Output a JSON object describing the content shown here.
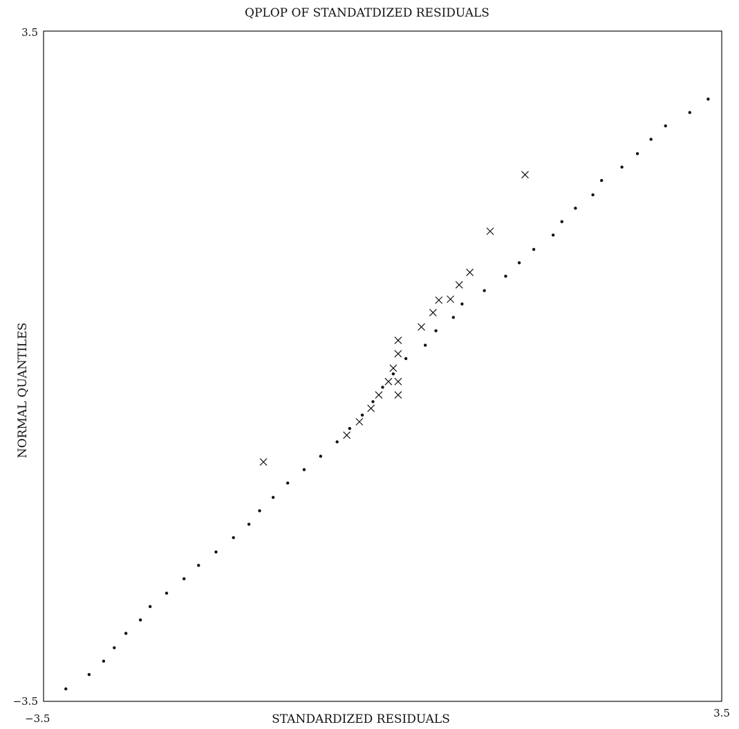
{
  "chart_data": {
    "type": "scatter",
    "title": "QPLOP OF STANDATDIZED RESIDUALS",
    "xlabel": "STANDARDIZED RESIDUALS",
    "ylabel": "NORMAL QUANTILES",
    "xlim": [
      -3.5,
      3.5
    ],
    "ylim": [
      -3.5,
      3.5
    ],
    "x_tick_labels": [
      "−3.5",
      "3.5"
    ],
    "y_tick_labels": [
      "−3.5",
      "3.5"
    ],
    "grid": false,
    "legend": "none",
    "series": [
      {
        "marker": "dot",
        "points": [
          [
            -3.27,
            -3.37
          ],
          [
            -3.03,
            -3.22
          ],
          [
            -2.88,
            -3.08
          ],
          [
            -2.77,
            -2.94
          ],
          [
            -2.65,
            -2.79
          ],
          [
            -2.5,
            -2.65
          ],
          [
            -2.4,
            -2.51
          ],
          [
            -2.23,
            -2.37
          ],
          [
            -2.05,
            -2.22
          ],
          [
            -1.9,
            -2.08
          ],
          [
            -1.72,
            -1.94
          ],
          [
            -1.54,
            -1.79
          ],
          [
            -1.38,
            -1.65
          ],
          [
            -1.27,
            -1.51
          ],
          [
            -1.13,
            -1.37
          ],
          [
            -0.98,
            -1.22
          ],
          [
            -0.81,
            -1.08
          ],
          [
            -0.64,
            -0.94
          ],
          [
            -0.47,
            -0.79
          ],
          [
            -0.34,
            -0.65
          ],
          [
            -0.21,
            -0.51
          ],
          [
            -0.1,
            -0.37
          ],
          [
            0.0,
            -0.22
          ],
          [
            0.11,
            -0.08
          ],
          [
            0.24,
            0.08
          ],
          [
            0.44,
            0.22
          ],
          [
            0.55,
            0.37
          ],
          [
            0.73,
            0.51
          ],
          [
            0.82,
            0.65
          ],
          [
            1.05,
            0.79
          ],
          [
            1.27,
            0.94
          ],
          [
            1.41,
            1.08
          ],
          [
            1.56,
            1.22
          ],
          [
            1.76,
            1.37
          ],
          [
            1.85,
            1.51
          ],
          [
            1.99,
            1.65
          ],
          [
            2.17,
            1.79
          ],
          [
            2.26,
            1.94
          ],
          [
            2.47,
            2.08
          ],
          [
            2.63,
            2.22
          ],
          [
            2.77,
            2.37
          ],
          [
            2.92,
            2.51
          ],
          [
            3.17,
            2.65
          ],
          [
            3.36,
            2.79
          ]
        ]
      },
      {
        "marker": "x",
        "points": [
          [
            -1.23,
            -1.0
          ],
          [
            -0.37,
            -0.72
          ],
          [
            -0.24,
            -0.58
          ],
          [
            -0.12,
            -0.44
          ],
          [
            -0.04,
            -0.3
          ],
          [
            0.06,
            -0.16
          ],
          [
            0.11,
            -0.02
          ],
          [
            0.16,
            -0.16
          ],
          [
            0.16,
            -0.3
          ],
          [
            0.16,
            0.13
          ],
          [
            0.16,
            0.27
          ],
          [
            0.4,
            0.41
          ],
          [
            0.52,
            0.56
          ],
          [
            0.58,
            0.69
          ],
          [
            0.7,
            0.7
          ],
          [
            0.79,
            0.85
          ],
          [
            0.9,
            0.98
          ],
          [
            1.11,
            1.41
          ],
          [
            1.47,
            2.0
          ]
        ]
      }
    ]
  }
}
